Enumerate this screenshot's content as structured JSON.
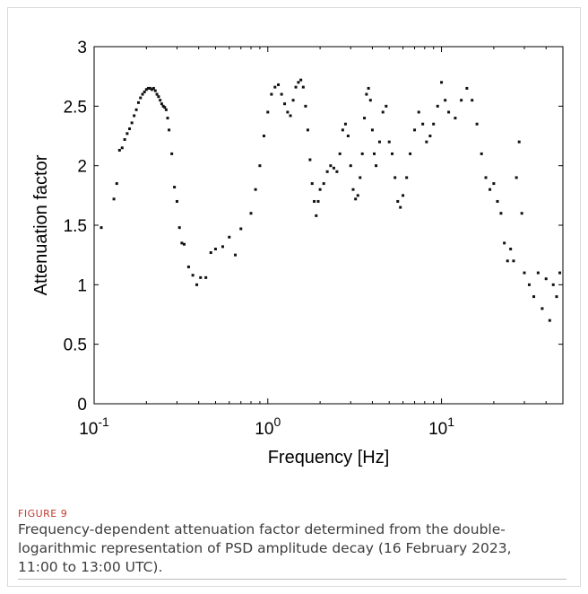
{
  "figure": {
    "label": "FIGURE 9",
    "caption": "Frequency-dependent attenuation factor determined from the double-logarithmic representation of PSD amplitude decay (16 February 2023, 11:00 to 13:00 UTC)."
  },
  "colors": {
    "marker": "#111111",
    "axis": "#000000",
    "caption_label": "#c0392b",
    "caption_text": "#3d3d3d"
  },
  "chart_data": {
    "type": "scatter",
    "xlabel": "Frequency [Hz]",
    "ylabel": "Attenuation factor",
    "xscale": "log",
    "xlim": [
      0.1,
      50
    ],
    "ylim": [
      0,
      3
    ],
    "grid": false,
    "xticks": [
      {
        "value": 0.1,
        "base": "10",
        "exp": "-1"
      },
      {
        "value": 1,
        "base": "10",
        "exp": "0"
      },
      {
        "value": 10,
        "base": "10",
        "exp": "1"
      }
    ],
    "yticks": [
      {
        "value": 0,
        "label": "0"
      },
      {
        "value": 0.5,
        "label": "0.5"
      },
      {
        "value": 1,
        "label": "1"
      },
      {
        "value": 1.5,
        "label": "1.5"
      },
      {
        "value": 2,
        "label": "2"
      },
      {
        "value": 2.5,
        "label": "2.5"
      },
      {
        "value": 3,
        "label": "3"
      }
    ],
    "points": [
      [
        0.11,
        1.48
      ],
      [
        0.13,
        1.72
      ],
      [
        0.135,
        1.85
      ],
      [
        0.14,
        2.13
      ],
      [
        0.145,
        2.15
      ],
      [
        0.15,
        2.22
      ],
      [
        0.155,
        2.27
      ],
      [
        0.16,
        2.31
      ],
      [
        0.165,
        2.36
      ],
      [
        0.17,
        2.42
      ],
      [
        0.175,
        2.47
      ],
      [
        0.18,
        2.53
      ],
      [
        0.185,
        2.57
      ],
      [
        0.19,
        2.6
      ],
      [
        0.195,
        2.62
      ],
      [
        0.2,
        2.64
      ],
      [
        0.205,
        2.65
      ],
      [
        0.21,
        2.65
      ],
      [
        0.215,
        2.64
      ],
      [
        0.22,
        2.65
      ],
      [
        0.225,
        2.63
      ],
      [
        0.23,
        2.6
      ],
      [
        0.235,
        2.58
      ],
      [
        0.24,
        2.55
      ],
      [
        0.245,
        2.52
      ],
      [
        0.25,
        2.5
      ],
      [
        0.255,
        2.49
      ],
      [
        0.26,
        2.47
      ],
      [
        0.265,
        2.4
      ],
      [
        0.27,
        2.3
      ],
      [
        0.28,
        2.1
      ],
      [
        0.29,
        1.82
      ],
      [
        0.3,
        1.7
      ],
      [
        0.31,
        1.48
      ],
      [
        0.32,
        1.35
      ],
      [
        0.33,
        1.34
      ],
      [
        0.35,
        1.15
      ],
      [
        0.37,
        1.08
      ],
      [
        0.39,
        1.0
      ],
      [
        0.41,
        1.06
      ],
      [
        0.44,
        1.06
      ],
      [
        0.47,
        1.27
      ],
      [
        0.5,
        1.3
      ],
      [
        0.55,
        1.32
      ],
      [
        0.6,
        1.4
      ],
      [
        0.65,
        1.25
      ],
      [
        0.7,
        1.47
      ],
      [
        0.8,
        1.6
      ],
      [
        0.85,
        1.8
      ],
      [
        0.9,
        2.0
      ],
      [
        0.95,
        2.25
      ],
      [
        1.0,
        2.45
      ],
      [
        1.05,
        2.6
      ],
      [
        1.1,
        2.66
      ],
      [
        1.15,
        2.68
      ],
      [
        1.2,
        2.6
      ],
      [
        1.25,
        2.52
      ],
      [
        1.3,
        2.45
      ],
      [
        1.35,
        2.42
      ],
      [
        1.4,
        2.55
      ],
      [
        1.45,
        2.66
      ],
      [
        1.5,
        2.7
      ],
      [
        1.55,
        2.72
      ],
      [
        1.6,
        2.66
      ],
      [
        1.65,
        2.5
      ],
      [
        1.7,
        2.3
      ],
      [
        1.75,
        2.05
      ],
      [
        1.8,
        1.85
      ],
      [
        1.85,
        1.7
      ],
      [
        1.9,
        1.58
      ],
      [
        1.95,
        1.7
      ],
      [
        2.0,
        1.8
      ],
      [
        2.1,
        1.85
      ],
      [
        2.2,
        1.95
      ],
      [
        2.3,
        2.0
      ],
      [
        2.4,
        1.98
      ],
      [
        2.5,
        1.95
      ],
      [
        2.6,
        2.1
      ],
      [
        2.7,
        2.3
      ],
      [
        2.8,
        2.35
      ],
      [
        2.9,
        2.25
      ],
      [
        3.0,
        2.0
      ],
      [
        3.1,
        1.8
      ],
      [
        3.2,
        1.72
      ],
      [
        3.3,
        1.75
      ],
      [
        3.4,
        1.9
      ],
      [
        3.5,
        2.1
      ],
      [
        3.6,
        2.4
      ],
      [
        3.7,
        2.6
      ],
      [
        3.8,
        2.65
      ],
      [
        3.9,
        2.55
      ],
      [
        4.0,
        2.3
      ],
      [
        4.1,
        2.1
      ],
      [
        4.2,
        2.0
      ],
      [
        4.4,
        2.2
      ],
      [
        4.6,
        2.45
      ],
      [
        4.8,
        2.5
      ],
      [
        5.0,
        2.2
      ],
      [
        5.2,
        2.1
      ],
      [
        5.4,
        1.9
      ],
      [
        5.6,
        1.7
      ],
      [
        5.8,
        1.65
      ],
      [
        6.0,
        1.75
      ],
      [
        6.3,
        1.9
      ],
      [
        6.6,
        2.1
      ],
      [
        7.0,
        2.3
      ],
      [
        7.4,
        2.45
      ],
      [
        7.8,
        2.35
      ],
      [
        8.2,
        2.2
      ],
      [
        8.6,
        2.25
      ],
      [
        9.0,
        2.35
      ],
      [
        9.5,
        2.5
      ],
      [
        10.0,
        2.7
      ],
      [
        10.5,
        2.55
      ],
      [
        11.0,
        2.45
      ],
      [
        12.0,
        2.4
      ],
      [
        13.0,
        2.55
      ],
      [
        14.0,
        2.65
      ],
      [
        15.0,
        2.55
      ],
      [
        16.0,
        2.35
      ],
      [
        17.0,
        2.1
      ],
      [
        18.0,
        1.9
      ],
      [
        19.0,
        1.8
      ],
      [
        20.0,
        1.85
      ],
      [
        21.0,
        1.7
      ],
      [
        22.0,
        1.6
      ],
      [
        23.0,
        1.35
      ],
      [
        24.0,
        1.2
      ],
      [
        25.0,
        1.3
      ],
      [
        26.0,
        1.2
      ],
      [
        27.0,
        1.9
      ],
      [
        28.0,
        2.2
      ],
      [
        29.0,
        1.6
      ],
      [
        30.0,
        1.1
      ],
      [
        32.0,
        1.0
      ],
      [
        34.0,
        0.9
      ],
      [
        36.0,
        1.1
      ],
      [
        38.0,
        0.8
      ],
      [
        40.0,
        1.05
      ],
      [
        42.0,
        0.7
      ],
      [
        44.0,
        1.0
      ],
      [
        46.0,
        0.9
      ],
      [
        48.0,
        1.1
      ]
    ]
  }
}
